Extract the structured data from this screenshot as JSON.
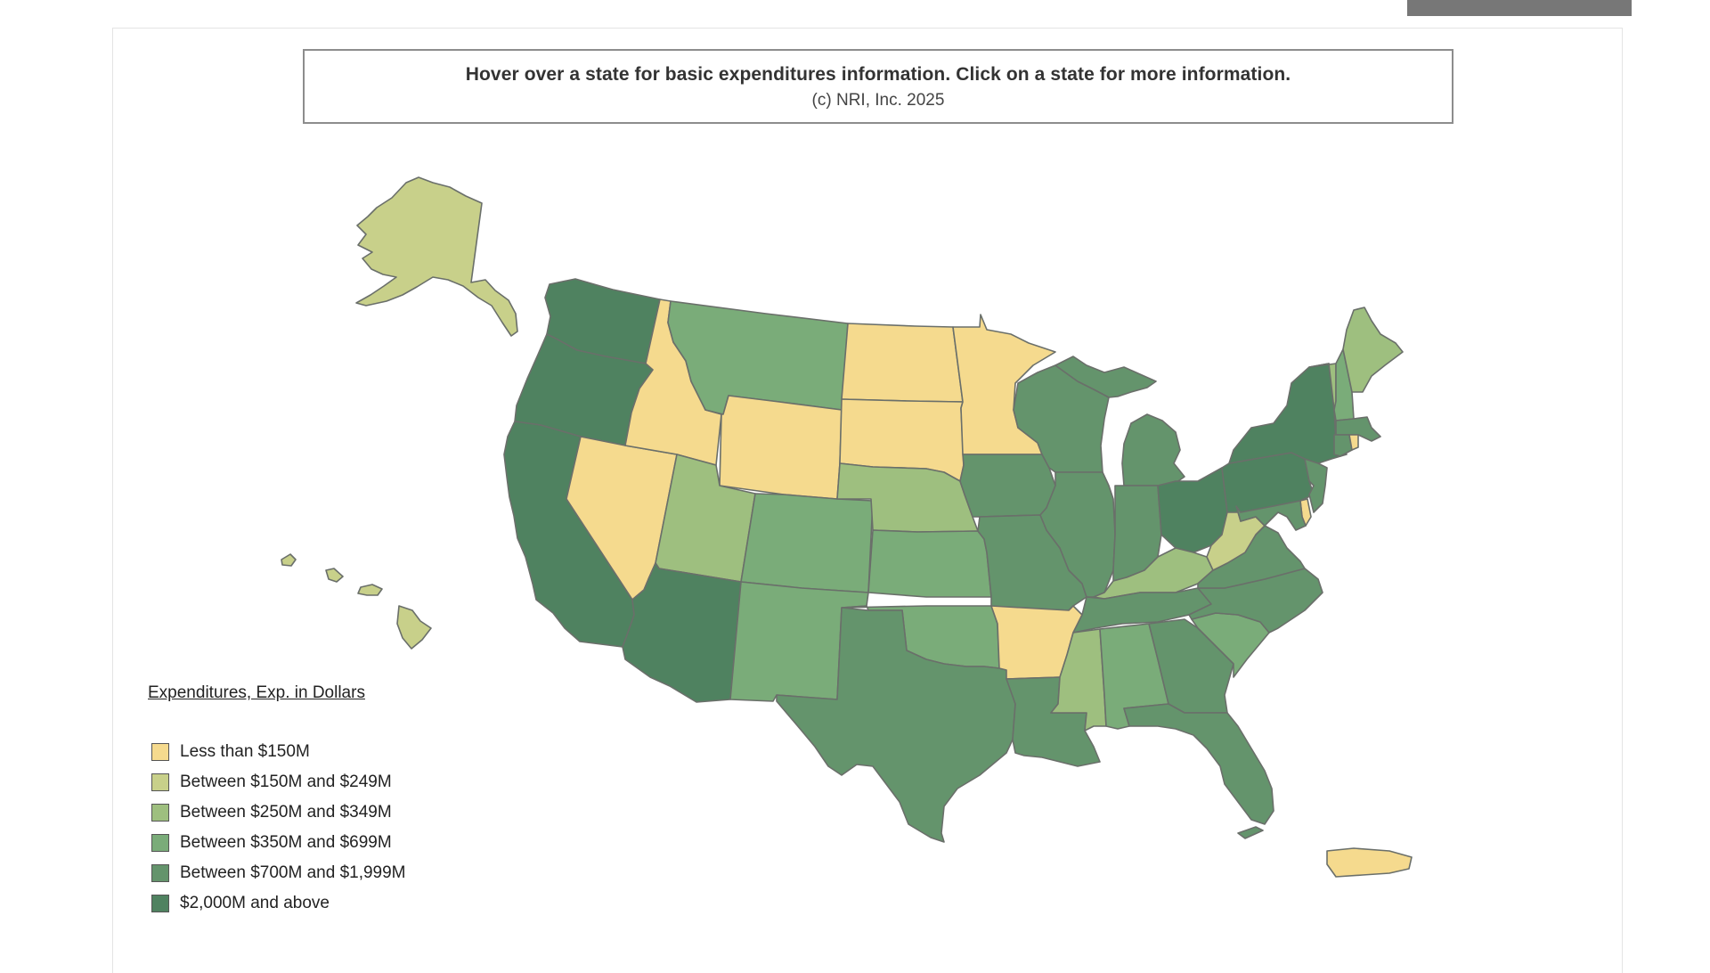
{
  "header": {
    "instruction": "Hover over a state for basic expenditures information. Click on a state for more information.",
    "copyright": "(c) NRI, Inc. 2025"
  },
  "legend": {
    "title": "Expenditures, Exp. in Dollars",
    "items": [
      {
        "label": "Less than $150M",
        "color": "#f5da8e"
      },
      {
        "label": "Between $150M and $249M",
        "color": "#c8d08a"
      },
      {
        "label": "Between $250M and $349M",
        "color": "#9ebf7f"
      },
      {
        "label": "Between $350M and $699M",
        "color": "#7aac79"
      },
      {
        "label": "Between $700M and $1,999M",
        "color": "#64946c"
      },
      {
        "label": "$2,000M and above",
        "color": "#4f8260"
      }
    ]
  },
  "states": {
    "WA": 5,
    "OR": 5,
    "CA": 5,
    "AZ": 5,
    "NY": 5,
    "PA": 5,
    "OH": 5,
    "TX": 4,
    "LA": 4,
    "MO": 4,
    "IA": 4,
    "WI": 4,
    "MI": 4,
    "IL": 4,
    "IN": 4,
    "TN": 4,
    "GA": 4,
    "FL": 4,
    "NC": 4,
    "VA": 4,
    "NJ": 4,
    "MA": 4,
    "CT": 4,
    "MD": 4,
    "MT": 3,
    "CO": 3,
    "NM": 3,
    "KS": 3,
    "OK": 3,
    "AL": 3,
    "SC": 3,
    "NH": 3,
    "UT": 2,
    "NE": 2,
    "MS": 2,
    "KY": 2,
    "ME": 2,
    "VT": 2,
    "AK": 1,
    "HI": 1,
    "WV": 1,
    "ID": 0,
    "NV": 0,
    "WY": 0,
    "ND": 0,
    "SD": 0,
    "MN": 0,
    "AR": 0,
    "DE": 0,
    "RI": 0,
    "PR": 0
  }
}
